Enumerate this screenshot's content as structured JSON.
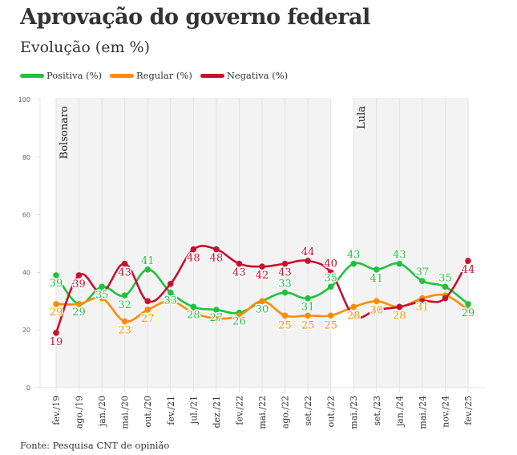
{
  "header": {
    "title": "Aprovação do governo federal",
    "subtitle": "Evolução (em %)"
  },
  "legend": [
    {
      "label": "Positiva (%)",
      "color": "#1ec23f"
    },
    {
      "label": "Regular (%)",
      "color": "#ff8c00"
    },
    {
      "label": "Negativa (%)",
      "color": "#c8102e"
    }
  ],
  "footer": {
    "source": "Fonte: Pesquisa CNT de opinião"
  },
  "chart_data": {
    "type": "line",
    "title": "Aprovação do governo federal",
    "subtitle": "Evolução (em %)",
    "xlabel": "",
    "ylabel": "",
    "ylim": [
      0,
      100
    ],
    "yticks": [
      0,
      20,
      40,
      60,
      80,
      100
    ],
    "grid": true,
    "legend_position": "top-left",
    "categories": [
      "fev./19",
      "ago./19",
      "jan./20",
      "mai./20",
      "out./20",
      "fev./21",
      "jul./21",
      "dez./21",
      "fev./22",
      "mai./22",
      "ago./22",
      "set./22",
      "out./22",
      "mai./23",
      "set./23",
      "jan./24",
      "mai./24",
      "nov./24",
      "fev./25"
    ],
    "periods": [
      {
        "label": "Bolsonaro",
        "start": "fev./19",
        "end": "out./22"
      },
      {
        "label": "Lula",
        "start": "mai./23",
        "end": "fev./25"
      }
    ],
    "series": [
      {
        "name": "Positiva (%)",
        "color": "#1ec23f",
        "values": [
          39,
          29,
          35,
          32,
          41,
          33,
          28,
          27,
          26,
          30,
          33,
          31,
          35,
          43,
          41,
          43,
          37,
          35,
          29
        ],
        "labels": [
          "39",
          "29",
          "35",
          "32",
          "41",
          "33",
          "28",
          "27",
          "26",
          "30",
          "33",
          "31",
          "35",
          "43",
          "41",
          "43",
          "37",
          "35",
          "29"
        ]
      },
      {
        "name": "Regular (%)",
        "color": "#ff8c00",
        "values": [
          29,
          29,
          31,
          23,
          27,
          30,
          26,
          24,
          25,
          30,
          25,
          25,
          25,
          28,
          30,
          28,
          31,
          32,
          27
        ],
        "labels": [
          "29",
          "",
          "",
          "23",
          "27",
          "",
          "",
          "",
          "",
          "",
          "25",
          "25",
          "25",
          "28",
          "30",
          "28",
          "31",
          "",
          ""
        ]
      },
      {
        "name": "Negativa (%)",
        "color": "#c8102e",
        "values": [
          19,
          39,
          33,
          43,
          30,
          36,
          48,
          48,
          43,
          42,
          43,
          44,
          40,
          25,
          27,
          28,
          30,
          31,
          44
        ],
        "labels": [
          "19",
          "39",
          "",
          "43",
          "",
          "",
          "48",
          "48",
          "43",
          "42",
          "43",
          "44",
          "40",
          "",
          "",
          "",
          "",
          "",
          "44"
        ]
      }
    ]
  }
}
